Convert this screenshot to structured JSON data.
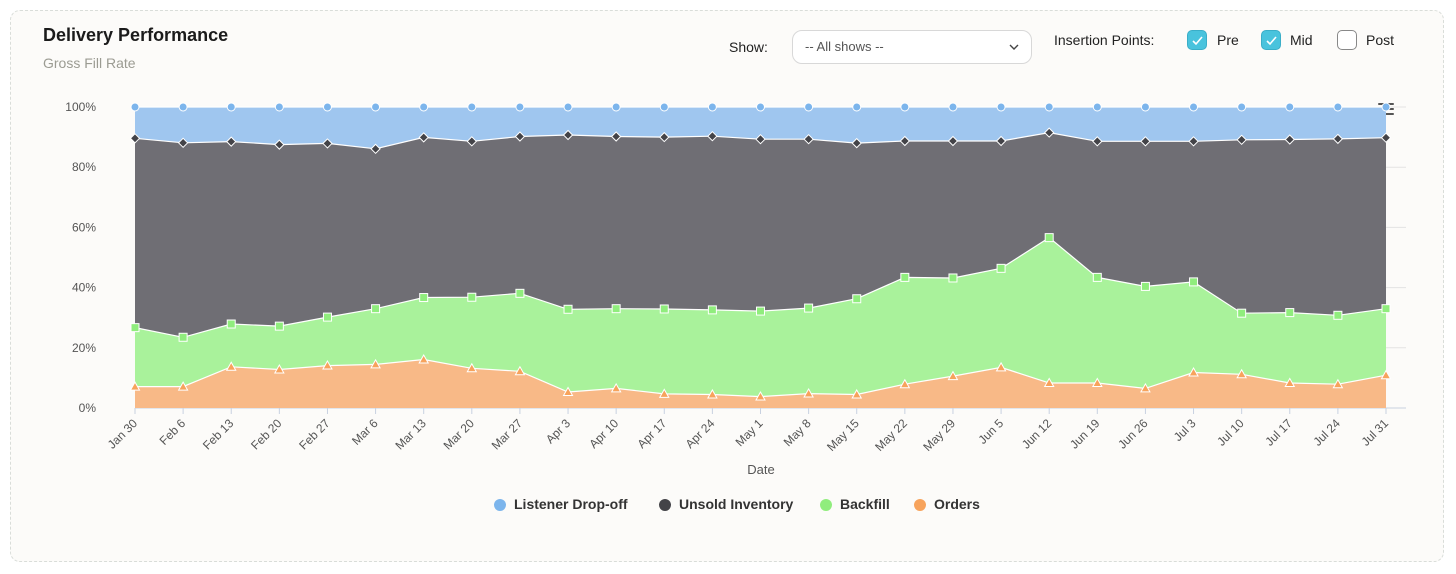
{
  "header": {
    "title": "Delivery Performance",
    "subtitle": "Gross Fill Rate"
  },
  "filter": {
    "show_label": "Show:",
    "show_value": "-- All shows --"
  },
  "insertion": {
    "label": "Insertion Points:",
    "options": [
      {
        "label": "Pre",
        "checked": true
      },
      {
        "label": "Mid",
        "checked": true
      },
      {
        "label": "Post",
        "checked": false
      }
    ]
  },
  "icons": {
    "select": "chevron-down-icon",
    "checkbox": "checkmark-icon",
    "menu": "hamburger-menu-icon"
  },
  "chart_data": {
    "type": "area",
    "stacked": true,
    "xlabel": "Date",
    "ylabel": "",
    "ylim": [
      0,
      100
    ],
    "y_ticks": [
      "0%",
      "20%",
      "40%",
      "60%",
      "80%",
      "100%"
    ],
    "categories": [
      "Jan 30",
      "Feb 6",
      "Feb 13",
      "Feb 20",
      "Feb 27",
      "Mar 6",
      "Mar 13",
      "Mar 20",
      "Mar 27",
      "Apr 3",
      "Apr 10",
      "Apr 17",
      "Apr 24",
      "May 1",
      "May 8",
      "May 15",
      "May 22",
      "May 29",
      "Jun 5",
      "Jun 12",
      "Jun 19",
      "Jun 26",
      "Jul 3",
      "Jul 10",
      "Jul 17",
      "Jul 24",
      "Jul 31"
    ],
    "legend_position": "bottom-center",
    "grid": true,
    "series": [
      {
        "name": "Listener Drop-off",
        "color": "#7cb5ec",
        "marker": "circle",
        "cumulative": [
          100,
          100,
          100,
          100,
          100,
          100,
          100,
          100,
          100,
          100,
          100,
          100,
          100,
          100,
          100,
          100,
          100,
          100,
          100,
          100,
          100,
          100,
          100,
          100,
          100,
          100,
          100
        ]
      },
      {
        "name": "Unsold Inventory",
        "color": "#434348",
        "marker": "diamond",
        "cumulative": [
          89.6,
          88.1,
          88.5,
          87.5,
          87.9,
          86.1,
          89.9,
          88.6,
          90.2,
          90.7,
          90.2,
          90.0,
          90.3,
          89.3,
          89.3,
          88.0,
          88.7,
          88.7,
          88.7,
          91.5,
          88.6,
          88.6,
          88.6,
          89.1,
          89.2,
          89.4,
          89.8
        ]
      },
      {
        "name": "Backfill",
        "color": "#90ed7d",
        "marker": "square",
        "cumulative": [
          26.7,
          23.5,
          27.9,
          27.2,
          30.2,
          33.0,
          36.7,
          36.8,
          38.1,
          32.8,
          33.0,
          32.9,
          32.6,
          32.2,
          33.2,
          36.3,
          43.4,
          43.2,
          46.4,
          56.6,
          43.4,
          40.4,
          41.9,
          31.5,
          31.7,
          30.8,
          33.0
        ]
      },
      {
        "name": "Orders",
        "color": "#f7a35c",
        "marker": "triangle",
        "cumulative": [
          7.1,
          7.1,
          13.7,
          12.8,
          14.1,
          14.5,
          16.1,
          13.2,
          12.2,
          5.3,
          6.5,
          4.7,
          4.5,
          3.8,
          4.8,
          4.5,
          7.9,
          10.6,
          13.5,
          8.3,
          8.3,
          6.5,
          11.8,
          11.2,
          8.3,
          7.9,
          10.9
        ]
      }
    ]
  }
}
